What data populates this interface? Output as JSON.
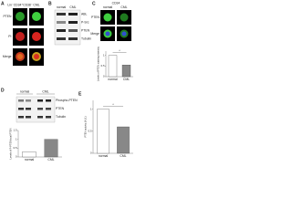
{
  "panels": {
    "A": {
      "label": "A",
      "columns": [
        "Lin⁻CD34⁺CD38⁻",
        "CML"
      ],
      "rows": [
        "PTEN",
        "PI",
        "Merge"
      ]
    },
    "B": {
      "label": "B",
      "columns": [
        "normal",
        "CML"
      ],
      "rows": [
        "ABL",
        "P-Src",
        "PTEN",
        "Tubulin"
      ]
    },
    "C": {
      "label": "C",
      "title": "CD34",
      "columns": [
        "normal",
        "CML"
      ],
      "rows": [
        "PTEN",
        "Merge"
      ]
    },
    "D": {
      "label": "D",
      "columns": [
        "normal",
        "CML"
      ],
      "rows": [
        "Phospho-PTEN",
        "PTEN",
        "Tubulin"
      ]
    },
    "E": {
      "label": "E"
    }
  },
  "chart_data": [
    {
      "type": "bar",
      "y_label": "Levels of PTEN staining intensity",
      "categories": [
        "normal",
        "CML"
      ],
      "values": [
        1.0,
        0.55
      ],
      "colors": [
        "#ffffff",
        "#888888"
      ],
      "ylim": [
        0,
        1.2
      ],
      "yticks": [
        0,
        0.5,
        1
      ],
      "annotation": "*"
    },
    {
      "type": "bar",
      "y_label": "Levels of P-PTEN/total PTEN",
      "categories": [
        "normal",
        "CML"
      ],
      "values": [
        0.3,
        1.0
      ],
      "colors": [
        "#ffffff",
        "#888888"
      ],
      "ylim": [
        0,
        1.5
      ],
      "yticks": [
        0,
        0.5,
        1,
        1.5
      ]
    },
    {
      "type": "bar",
      "y_label": "PTEN activity (A.U.)",
      "categories": [
        "normal",
        "CML"
      ],
      "values": [
        1.0,
        0.6
      ],
      "colors": [
        "#ffffff",
        "#888888"
      ],
      "ylim": [
        0,
        1.2
      ],
      "yticks": [
        0,
        0.5,
        1
      ],
      "annotation": "*"
    }
  ]
}
